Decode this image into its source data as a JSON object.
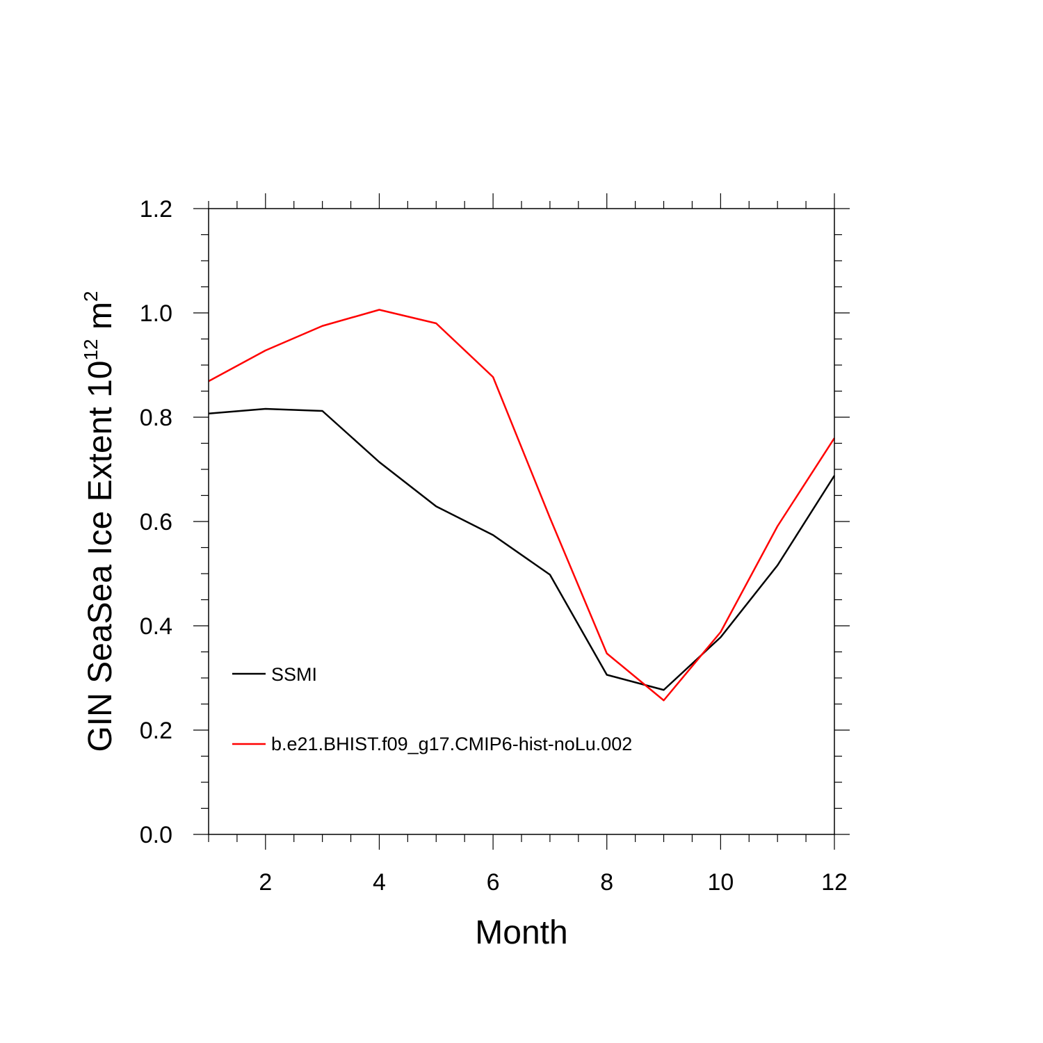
{
  "chart_data": {
    "type": "line",
    "xlabel": "Month",
    "ylabel": {
      "main": "GIN SeaSea Ice Extent 10",
      "exp1": "12",
      "unit": " m",
      "exp2": "2"
    },
    "xlim": [
      1,
      12
    ],
    "ylim": [
      0.0,
      1.2
    ],
    "x_ticks": [
      2,
      4,
      6,
      8,
      10,
      12
    ],
    "y_ticks": [
      "0.0",
      "0.2",
      "0.4",
      "0.6",
      "0.8",
      "1.0",
      "1.2"
    ],
    "grid": false,
    "legend_placement": "bottom-left inside",
    "x": [
      1,
      2,
      3,
      4,
      5,
      6,
      7,
      8,
      9,
      10,
      11,
      12
    ],
    "series": [
      {
        "name": "SSMI",
        "color": "#000000",
        "values": [
          0.807,
          0.816,
          0.812,
          0.714,
          0.629,
          0.574,
          0.498,
          0.306,
          0.277,
          0.378,
          0.516,
          0.688
        ]
      },
      {
        "name": "b.e21.BHIST.f09_g17.CMIP6-hist-noLu.002",
        "color": "#ff0000",
        "values": [
          0.869,
          0.928,
          0.975,
          1.006,
          0.98,
          0.877,
          0.607,
          0.347,
          0.257,
          0.388,
          0.591,
          0.76
        ]
      }
    ]
  }
}
